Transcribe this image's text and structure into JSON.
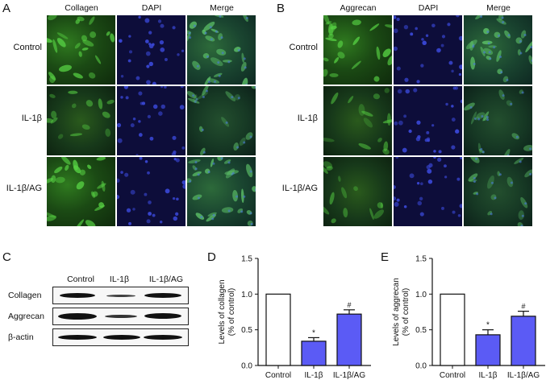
{
  "panels": {
    "A": {
      "letter": "A",
      "columns": [
        "Collagen",
        "DAPI",
        "Merge"
      ],
      "rows": [
        "Control",
        "IL-1β",
        "IL-1β/AG"
      ]
    },
    "B": {
      "letter": "B",
      "columns": [
        "Aggrecan",
        "DAPI",
        "Merge"
      ],
      "rows": [
        "Control",
        "IL-1β",
        "IL-1β/AG"
      ]
    },
    "C": {
      "letter": "C",
      "columns": [
        "Control",
        "IL-1β",
        "IL-1β/AG"
      ],
      "rows": [
        "Collagen",
        "Aggrecan",
        "β-actin"
      ]
    },
    "D": {
      "letter": "D"
    },
    "E": {
      "letter": "E"
    }
  },
  "colors": {
    "bar_control": "#ffffff",
    "bar_treated": "#5b5bf5",
    "axis": "#111111"
  },
  "chart_data": [
    {
      "type": "bar",
      "panel": "D",
      "categories": [
        "Control",
        "IL-1β",
        "IL-1β/AG"
      ],
      "values": [
        1.0,
        0.34,
        0.72
      ],
      "errors": [
        0,
        0.05,
        0.06
      ],
      "annotations": [
        "",
        "*",
        "#"
      ],
      "ylabel": "Levels of collagen\n(% of control)",
      "ylim": [
        0,
        1.5
      ],
      "yticks": [
        "0.0",
        "0.5",
        "1.0",
        "1.5"
      ]
    },
    {
      "type": "bar",
      "panel": "E",
      "categories": [
        "Control",
        "IL-1β",
        "IL-1β/AG"
      ],
      "values": [
        1.0,
        0.43,
        0.69
      ],
      "errors": [
        0,
        0.07,
        0.07
      ],
      "annotations": [
        "",
        "*",
        "#"
      ],
      "ylabel": "Levels of aggrecan\n(% of control)",
      "ylim": [
        0,
        1.5
      ],
      "yticks": [
        "0.0",
        "0.5",
        "1.0",
        "1.5"
      ]
    }
  ]
}
